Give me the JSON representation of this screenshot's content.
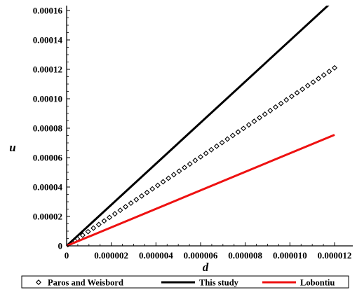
{
  "chart_data": {
    "type": "line",
    "title": "",
    "xlabel": "d",
    "ylabel": "u",
    "xlim": [
      0,
      1.2e-05
    ],
    "ylim": [
      0,
      0.00016
    ],
    "grid": false,
    "legend_position": "bottom",
    "x_tick_labels": [
      "0",
      "0.000002",
      "0.000004",
      "0.000006",
      "0.000008",
      "0.000010",
      "0.000012"
    ],
    "x_tick_values": [
      0,
      2e-06,
      4e-06,
      6e-06,
      8e-06,
      1e-05,
      1.2e-05
    ],
    "y_tick_labels": [
      "0",
      "0.00002",
      "0.00004",
      "0.00006",
      "0.00008",
      "0.00010",
      "0.00012",
      "0.00014",
      "0.00016"
    ],
    "y_tick_values": [
      0,
      2e-05,
      4e-05,
      6e-05,
      8e-05,
      0.0001,
      0.00012,
      0.00014,
      0.00016
    ],
    "series": [
      {
        "name": "Paros and Weisbord",
        "style": "diamond-markers",
        "color": "#000000",
        "x": [
          0,
          1.2e-05
        ],
        "y": [
          0,
          0.000121
        ],
        "marker_count": 50
      },
      {
        "name": "This study",
        "style": "solid",
        "color": "#000000",
        "x": [
          0,
          1.2e-05
        ],
        "y": [
          0,
          0.0001675
        ]
      },
      {
        "name": "Lobontiu",
        "style": "solid",
        "color": "#ee1111",
        "x": [
          0,
          1.2e-05
        ],
        "y": [
          0,
          7.55e-05
        ]
      }
    ]
  }
}
